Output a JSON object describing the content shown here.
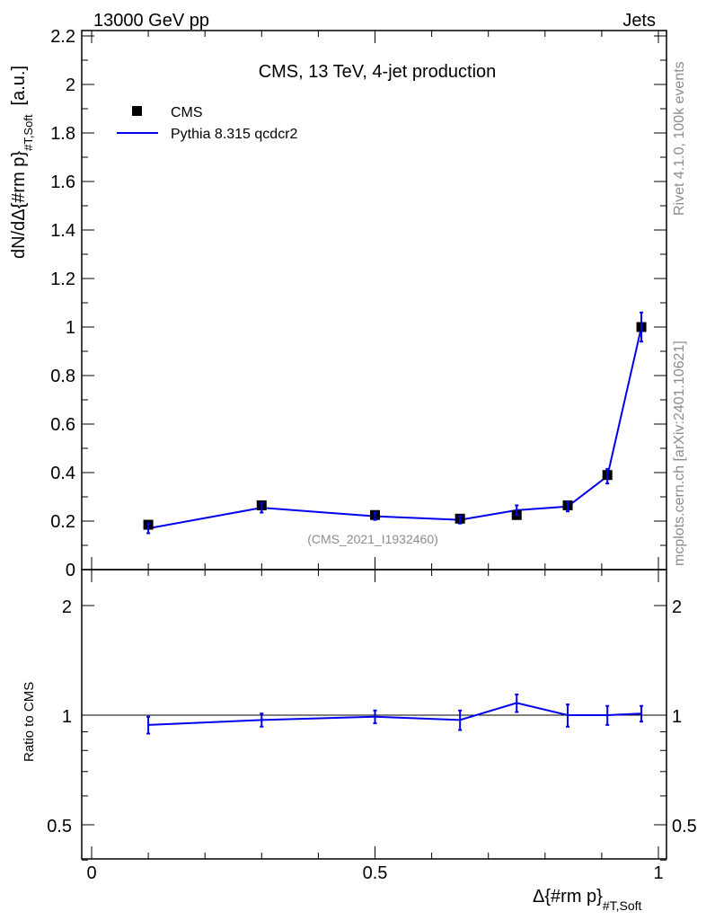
{
  "header": {
    "left": "13000 GeV pp",
    "right": "Jets"
  },
  "side_labels": {
    "rivet": "Rivet 4.1.0,  100k events",
    "mcplots": "mcplots.cern.ch [arXiv:2401.10621]"
  },
  "chart_data": {
    "type": "line",
    "title": "CMS, 13 TeV, 4-jet production",
    "analysis_id": "(CMS_2021_I1932460)",
    "ylabel_main": "dN/dΔ{#rm p}",
    "ylabel_main_sub": "#T,Soft",
    "ylabel_main_unit": "[a.u.]",
    "ylabel_ratio": "Ratio to CMS",
    "xlabel": "Δ{#rm p}",
    "xlabel_sub": "#T,Soft",
    "xlim": [
      0,
      1
    ],
    "ylim_main": [
      0,
      2.2
    ],
    "ylim_ratio": [
      0.35,
      2.3
    ],
    "x_ticks": [
      "0",
      "0.5",
      "1"
    ],
    "y_ticks_main": [
      "0",
      "0.2",
      "0.4",
      "0.6",
      "0.8",
      "1",
      "1.2",
      "1.4",
      "1.6",
      "1.8",
      "2",
      "2.2"
    ],
    "y_ticks_ratio": [
      "0.5",
      "1",
      "2"
    ],
    "legend": [
      "CMS",
      "Pythia 8.315 qcdcr2"
    ],
    "x": [
      0.1,
      0.3,
      0.5,
      0.65,
      0.75,
      0.84,
      0.91,
      0.97
    ],
    "series": [
      {
        "name": "CMS",
        "values": [
          0.185,
          0.265,
          0.225,
          0.21,
          0.225,
          0.265,
          0.39,
          1.0
        ]
      },
      {
        "name": "Pythia 8.315 qcdcr2",
        "values": [
          0.17,
          0.255,
          0.22,
          0.205,
          0.245,
          0.26,
          0.385,
          1.0
        ],
        "errors": [
          0.02,
          0.02,
          0.015,
          0.015,
          0.02,
          0.02,
          0.03,
          0.06
        ]
      }
    ],
    "ratio": {
      "values": [
        0.94,
        0.97,
        0.99,
        0.97,
        1.08,
        1.0,
        1.0,
        1.01
      ],
      "errors": [
        0.05,
        0.04,
        0.04,
        0.06,
        0.06,
        0.07,
        0.06,
        0.05
      ]
    },
    "colors": {
      "data": "#000000",
      "mc": "#0000ee"
    }
  }
}
